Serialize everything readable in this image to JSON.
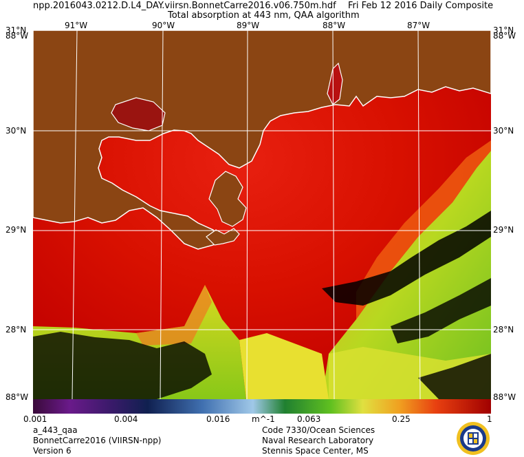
{
  "header": {
    "filename": "npp.2016043.0212.D.L4_DAY.viirsn.BonnetCarre2016.v06.750m.hdf",
    "date": "Fri Feb 12 2016 Daily Composite",
    "product": "Total absorption at 443 nm, QAA algorithm"
  },
  "map": {
    "lon_labels": [
      "91°W",
      "90°W",
      "89°W",
      "88°W",
      "87°W"
    ],
    "lat_labels": [
      "30°N",
      "29°N",
      "28°N"
    ],
    "corner_top_left_lat": "31°N",
    "corner_top_left_lon": "88°W",
    "corner_top_right_lat": "31°N",
    "corner_top_right_lon": "88°W",
    "corner_bottom_left": "88°W",
    "corner_bottom_right": "88°W",
    "colors": {
      "land": "#8b4513",
      "coastline": "#ffffff",
      "no_data": "#000000",
      "grid": "#ffffff"
    }
  },
  "colorbar": {
    "tick_labels": [
      "0.001",
      "0.004",
      "0.016",
      "0.063",
      "0.25",
      "1"
    ],
    "unit": "m^-1",
    "scale": "log"
  },
  "footer": {
    "left": [
      "a_443_qaa",
      "BonnetCarre2016 (VIIRSN-npp)",
      "Version 6"
    ],
    "right": [
      "Code 7330/Ocean Sciences",
      "Naval Research Laboratory",
      "Stennis Space Center, MS"
    ]
  }
}
